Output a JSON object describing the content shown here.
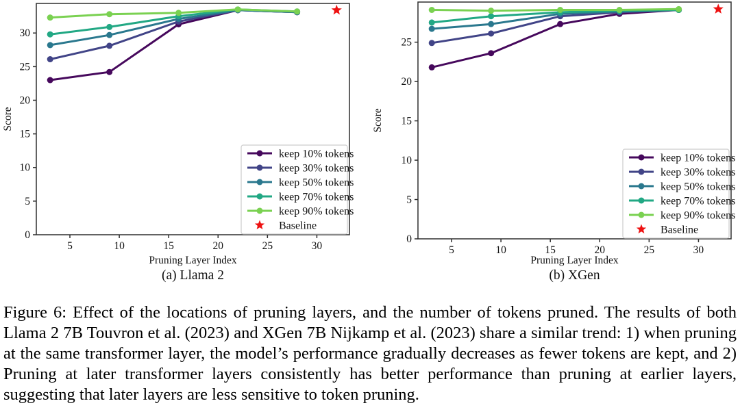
{
  "figure": {
    "caption": "Figure 6: Effect of the locations of pruning layers, and the number of tokens pruned. The results of both Llama 2 7B Touvron et al. (2023) and XGen 7B Nijkamp et al. (2023) share a similar trend: 1) when pruning at the same transformer layer, the model’s performance gradually decreases as fewer tokens are kept, and 2) Pruning at later transformer layers consistently has better performance than pruning at earlier layers, suggesting that later layers are less sensitive to token pruning."
  },
  "colors": {
    "series": [
      "#46085c",
      "#414487",
      "#2a788e",
      "#22a884",
      "#7ad151"
    ],
    "baseline_star": "#ee1111",
    "axis": "#2f2f2f",
    "legend_border": "#cccccc",
    "legend_bg": "#ffffff"
  },
  "chart_data": [
    {
      "type": "line",
      "title": "(a) Llama 2",
      "xlabel": "Pruning Layer Index",
      "ylabel": "Score",
      "x": [
        3,
        9,
        16,
        22,
        28
      ],
      "xticks": [
        5,
        10,
        15,
        20,
        25,
        30
      ],
      "yticks": [
        0,
        5,
        10,
        15,
        20,
        25,
        30
      ],
      "xlim": [
        1.6,
        33.3
      ],
      "ylim": [
        0,
        34.4
      ],
      "grid": false,
      "legend_position": "lower right",
      "series": [
        {
          "name": "keep 10% tokens",
          "values": [
            23.0,
            24.2,
            31.3,
            33.4,
            33.1
          ]
        },
        {
          "name": "keep 30% tokens",
          "values": [
            26.1,
            28.1,
            31.7,
            33.4,
            33.1
          ]
        },
        {
          "name": "keep 50% tokens",
          "values": [
            28.2,
            29.7,
            32.1,
            33.4,
            33.1
          ]
        },
        {
          "name": "keep 70% tokens",
          "values": [
            29.8,
            30.9,
            32.5,
            33.5,
            33.2
          ]
        },
        {
          "name": "keep 90% tokens",
          "values": [
            32.3,
            32.8,
            33.0,
            33.5,
            33.2
          ]
        }
      ],
      "baseline": {
        "name": "Baseline",
        "x": 32,
        "y": 33.4,
        "marker": "star"
      }
    },
    {
      "type": "line",
      "title": "(b) XGen",
      "xlabel": "Pruning Layer Index",
      "ylabel": "Score",
      "x": [
        3,
        9,
        16,
        22,
        28
      ],
      "xticks": [
        5,
        10,
        15,
        20,
        25,
        30
      ],
      "yticks": [
        0,
        5,
        10,
        15,
        20,
        25
      ],
      "xlim": [
        1.6,
        33.3
      ],
      "ylim": [
        0,
        30.1
      ],
      "grid": false,
      "legend_position": "lower right",
      "series": [
        {
          "name": "keep 10% tokens",
          "values": [
            21.8,
            23.6,
            27.3,
            28.6,
            29.1
          ]
        },
        {
          "name": "keep 30% tokens",
          "values": [
            24.9,
            26.1,
            28.3,
            28.8,
            29.1
          ]
        },
        {
          "name": "keep 50% tokens",
          "values": [
            26.7,
            27.3,
            28.6,
            28.9,
            29.1
          ]
        },
        {
          "name": "keep 70% tokens",
          "values": [
            27.5,
            28.3,
            28.8,
            29.0,
            29.1
          ]
        },
        {
          "name": "keep 90% tokens",
          "values": [
            29.1,
            29.0,
            29.1,
            29.1,
            29.2
          ]
        }
      ],
      "baseline": {
        "name": "Baseline",
        "x": 32,
        "y": 29.2,
        "marker": "star"
      }
    }
  ]
}
